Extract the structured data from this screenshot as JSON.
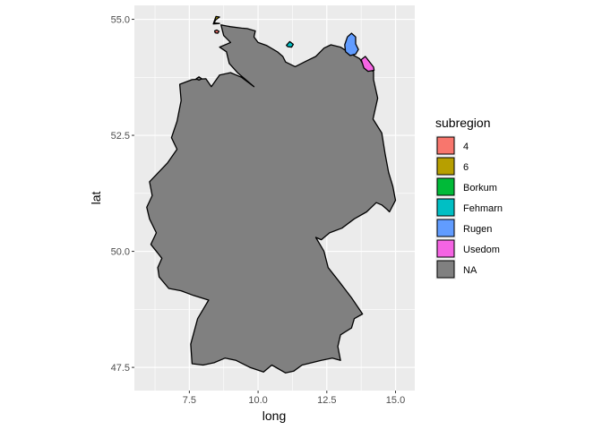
{
  "chart_data": {
    "type": "map",
    "region": "Germany",
    "xlabel": "long",
    "ylabel": "lat",
    "xlim": [
      5.5,
      15.7
    ],
    "ylim": [
      47.0,
      55.3
    ],
    "x_ticks": [
      {
        "value": 7.5,
        "label": "7.5"
      },
      {
        "value": 10.0,
        "label": "10.0"
      },
      {
        "value": 12.5,
        "label": "12.5"
      },
      {
        "value": 15.0,
        "label": "15.0"
      }
    ],
    "y_ticks": [
      {
        "value": 47.5,
        "label": "47.5"
      },
      {
        "value": 50.0,
        "label": "50.0"
      },
      {
        "value": 52.5,
        "label": "52.5"
      },
      {
        "value": 55.0,
        "label": "55.0"
      }
    ],
    "panel_background": "#ebebeb",
    "grid": true,
    "legend": {
      "title": "subregion",
      "placement": "right",
      "entries": [
        {
          "label": "4",
          "color": "#F8766D"
        },
        {
          "label": "6",
          "color": "#B79F00"
        },
        {
          "label": "Borkum",
          "color": "#00BA38"
        },
        {
          "label": "Fehmarn",
          "color": "#00BFC4"
        },
        {
          "label": "Rugen",
          "color": "#619CFF"
        },
        {
          "label": "Usedom",
          "color": "#F564E3"
        },
        {
          "label": "NA",
          "color": "#808080"
        }
      ]
    },
    "polygons": [
      {
        "subregion": "NA",
        "fill": "#808080",
        "coords": [
          [
            8.65,
            54.88
          ],
          [
            9.0,
            54.84
          ],
          [
            9.4,
            54.81
          ],
          [
            9.6,
            54.8
          ],
          [
            9.9,
            54.75
          ],
          [
            9.85,
            54.62
          ],
          [
            10.0,
            54.5
          ],
          [
            10.3,
            54.44
          ],
          [
            10.7,
            54.3
          ],
          [
            10.9,
            54.2
          ],
          [
            11.0,
            54.08
          ],
          [
            11.35,
            53.98
          ],
          [
            11.75,
            54.1
          ],
          [
            12.1,
            54.2
          ],
          [
            12.4,
            54.38
          ],
          [
            12.65,
            54.45
          ],
          [
            13.0,
            54.4
          ],
          [
            13.4,
            54.25
          ],
          [
            13.7,
            54.15
          ],
          [
            13.9,
            53.95
          ],
          [
            14.2,
            53.88
          ],
          [
            14.2,
            53.7
          ],
          [
            14.35,
            53.3
          ],
          [
            14.18,
            52.85
          ],
          [
            14.5,
            52.55
          ],
          [
            14.62,
            52.1
          ],
          [
            14.75,
            51.7
          ],
          [
            14.9,
            51.4
          ],
          [
            15.0,
            51.1
          ],
          [
            14.78,
            50.85
          ],
          [
            14.7,
            50.9
          ],
          [
            14.5,
            51.0
          ],
          [
            14.3,
            51.05
          ],
          [
            13.95,
            50.85
          ],
          [
            13.5,
            50.7
          ],
          [
            13.05,
            50.5
          ],
          [
            12.6,
            50.4
          ],
          [
            12.3,
            50.25
          ],
          [
            12.1,
            50.3
          ],
          [
            12.4,
            50.0
          ],
          [
            12.55,
            49.65
          ],
          [
            12.95,
            49.35
          ],
          [
            13.4,
            49.0
          ],
          [
            13.8,
            48.65
          ],
          [
            13.5,
            48.55
          ],
          [
            13.4,
            48.35
          ],
          [
            13.0,
            48.2
          ],
          [
            12.9,
            47.95
          ],
          [
            13.0,
            47.65
          ],
          [
            12.7,
            47.7
          ],
          [
            12.3,
            47.65
          ],
          [
            11.6,
            47.55
          ],
          [
            11.3,
            47.42
          ],
          [
            11.0,
            47.38
          ],
          [
            10.5,
            47.55
          ],
          [
            10.2,
            47.4
          ],
          [
            9.7,
            47.5
          ],
          [
            9.2,
            47.65
          ],
          [
            8.8,
            47.7
          ],
          [
            8.4,
            47.6
          ],
          [
            8.0,
            47.55
          ],
          [
            7.6,
            47.58
          ],
          [
            7.55,
            48.0
          ],
          [
            7.8,
            48.55
          ],
          [
            8.2,
            48.95
          ],
          [
            7.65,
            49.05
          ],
          [
            7.2,
            49.15
          ],
          [
            6.75,
            49.2
          ],
          [
            6.4,
            49.45
          ],
          [
            6.35,
            49.65
          ],
          [
            6.5,
            49.85
          ],
          [
            6.1,
            50.15
          ],
          [
            6.3,
            50.4
          ],
          [
            6.05,
            50.7
          ],
          [
            5.95,
            50.95
          ],
          [
            6.15,
            51.2
          ],
          [
            6.05,
            51.5
          ],
          [
            6.7,
            51.9
          ],
          [
            7.05,
            52.2
          ],
          [
            6.85,
            52.45
          ],
          [
            7.05,
            52.8
          ],
          [
            7.2,
            53.25
          ],
          [
            7.15,
            53.6
          ],
          [
            7.6,
            53.7
          ],
          [
            8.1,
            53.72
          ],
          [
            8.3,
            53.55
          ],
          [
            8.6,
            53.8
          ],
          [
            9.0,
            53.85
          ],
          [
            9.4,
            53.75
          ],
          [
            9.85,
            53.55
          ],
          [
            9.25,
            53.85
          ],
          [
            8.95,
            54.05
          ],
          [
            8.85,
            54.3
          ],
          [
            8.6,
            54.4
          ],
          [
            9.0,
            54.5
          ],
          [
            8.75,
            54.65
          ],
          [
            8.65,
            54.88
          ]
        ]
      },
      {
        "subregion": "6",
        "fill": "#B79F00",
        "coords": [
          [
            8.37,
            54.9
          ],
          [
            8.47,
            55.06
          ],
          [
            8.6,
            55.05
          ],
          [
            8.46,
            54.99
          ],
          [
            8.4,
            54.92
          ],
          [
            8.6,
            54.91
          ],
          [
            8.37,
            54.9
          ]
        ]
      },
      {
        "subregion": "4",
        "fill": "#F8766D",
        "coords": [
          [
            8.42,
            54.75
          ],
          [
            8.5,
            54.77
          ],
          [
            8.58,
            54.74
          ],
          [
            8.53,
            54.7
          ],
          [
            8.44,
            54.71
          ],
          [
            8.42,
            54.75
          ]
        ]
      },
      {
        "subregion": "Fehmarn",
        "fill": "#00BFC4",
        "coords": [
          [
            11.03,
            54.44
          ],
          [
            11.15,
            54.52
          ],
          [
            11.28,
            54.46
          ],
          [
            11.22,
            54.4
          ],
          [
            11.08,
            54.41
          ],
          [
            11.03,
            54.44
          ]
        ]
      },
      {
        "subregion": "Rugen",
        "fill": "#619CFF",
        "coords": [
          [
            13.15,
            54.45
          ],
          [
            13.25,
            54.62
          ],
          [
            13.4,
            54.7
          ],
          [
            13.55,
            54.62
          ],
          [
            13.55,
            54.47
          ],
          [
            13.65,
            54.35
          ],
          [
            13.55,
            54.25
          ],
          [
            13.35,
            54.22
          ],
          [
            13.18,
            54.3
          ],
          [
            13.15,
            54.45
          ]
        ]
      },
      {
        "subregion": "Usedom",
        "fill": "#F564E3",
        "coords": [
          [
            13.75,
            54.13
          ],
          [
            13.9,
            54.2
          ],
          [
            14.2,
            53.97
          ],
          [
            14.22,
            53.9
          ],
          [
            14.0,
            53.88
          ],
          [
            13.85,
            53.95
          ],
          [
            13.75,
            54.13
          ]
        ]
      },
      {
        "subregion": "NA-islet",
        "fill": "#808080",
        "coords": [
          [
            7.75,
            53.72
          ],
          [
            7.85,
            53.76
          ],
          [
            7.95,
            53.72
          ],
          [
            7.85,
            53.69
          ],
          [
            7.75,
            53.72
          ]
        ]
      }
    ]
  }
}
